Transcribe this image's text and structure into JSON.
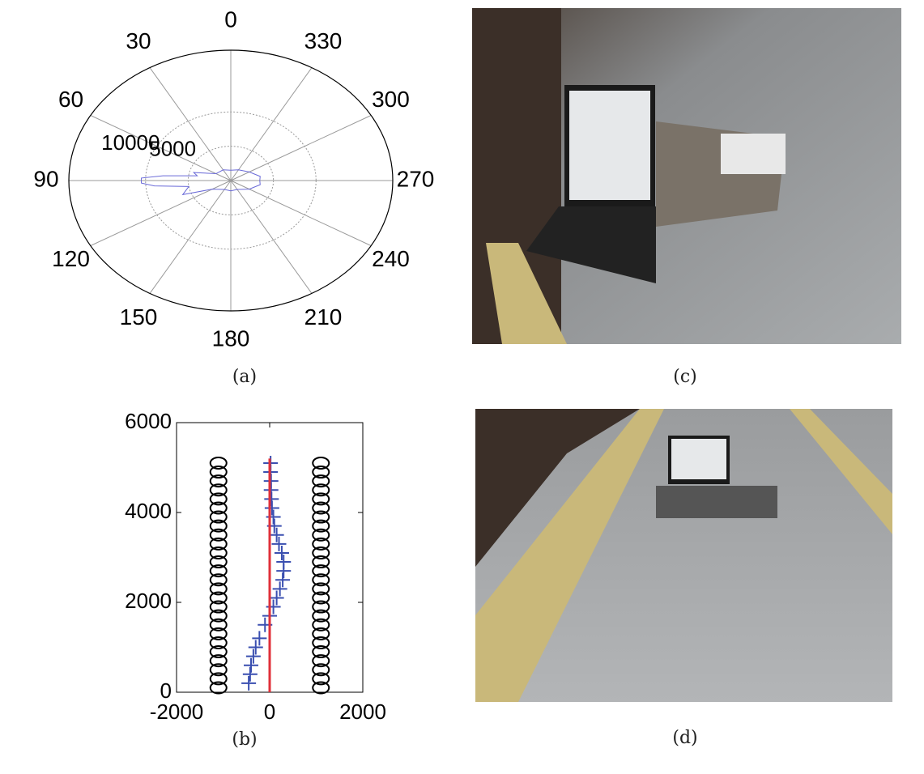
{
  "chart_data": [
    {
      "type": "polar",
      "thetaticks": [
        0,
        30,
        60,
        90,
        120,
        150,
        180,
        210,
        240,
        270,
        300,
        330
      ],
      "rlim": [
        0,
        19000
      ],
      "rticks": [
        5000,
        10000
      ],
      "series": [
        {
          "color": "#6a6ad8",
          "theta": [
            0,
            30,
            60,
            75,
            80,
            85,
            88,
            92,
            95,
            100,
            110,
            120,
            150,
            180,
            210,
            240,
            260,
            270,
            280,
            300,
            330,
            360
          ],
          "values": [
            1500,
            1800,
            2000,
            4500,
            4000,
            8000,
            10500,
            10500,
            9000,
            5000,
            6000,
            2500,
            1500,
            1500,
            1500,
            2500,
            3500,
            3400,
            3500,
            2500,
            1800,
            1500
          ]
        }
      ]
    },
    {
      "type": "scatter",
      "xlim": [
        -2000,
        2000
      ],
      "ylim": [
        0,
        6000
      ],
      "xticks": [
        -2000,
        0,
        2000
      ],
      "yticks": [
        0,
        2000,
        4000,
        6000
      ],
      "series": [
        {
          "color": "#000000",
          "marker": "circle",
          "x": [
            -1100,
            -1100,
            -1100,
            -1100,
            -1100,
            -1100,
            -1100,
            -1100,
            -1100,
            -1100,
            -1100,
            -1100,
            -1100,
            -1100,
            -1100,
            -1100,
            -1100,
            -1100,
            -1100,
            -1100,
            -1100,
            -1100,
            -1100,
            -1100,
            -1100,
            -1100
          ],
          "y": [
            100,
            300,
            500,
            700,
            900,
            1100,
            1300,
            1500,
            1700,
            1900,
            2100,
            2300,
            2500,
            2700,
            2900,
            3100,
            3300,
            3500,
            3700,
            3900,
            4100,
            4300,
            4500,
            4700,
            4900,
            5100
          ]
        },
        {
          "color": "#000000",
          "marker": "circle",
          "x": [
            1100,
            1100,
            1100,
            1100,
            1100,
            1100,
            1100,
            1100,
            1100,
            1100,
            1100,
            1100,
            1100,
            1100,
            1100,
            1100,
            1100,
            1100,
            1100,
            1100,
            1100,
            1100,
            1100,
            1100,
            1100,
            1100
          ],
          "y": [
            100,
            300,
            500,
            700,
            900,
            1100,
            1300,
            1500,
            1700,
            1900,
            2100,
            2300,
            2500,
            2700,
            2900,
            3100,
            3300,
            3500,
            3700,
            3900,
            4100,
            4300,
            4500,
            4700,
            4900,
            5100
          ]
        },
        {
          "color": "#3a4fb0",
          "marker": "plus",
          "x": [
            -450,
            -420,
            -400,
            -350,
            -300,
            -220,
            -100,
            0,
            80,
            150,
            220,
            280,
            300,
            300,
            260,
            200,
            150,
            100,
            80,
            50,
            40,
            30,
            30,
            20,
            20
          ],
          "y": [
            200,
            400,
            600,
            800,
            1000,
            1200,
            1500,
            1700,
            1900,
            2100,
            2300,
            2500,
            2700,
            2900,
            3100,
            3300,
            3500,
            3700,
            3900,
            4100,
            4300,
            4500,
            4700,
            4900,
            5100
          ]
        },
        {
          "color": "#e0303a",
          "marker": "line",
          "x": [
            0,
            0
          ],
          "y": [
            0,
            5200
          ]
        }
      ]
    }
  ],
  "captions": [
    "(a)",
    "(b)",
    "(c)",
    "(d)"
  ]
}
